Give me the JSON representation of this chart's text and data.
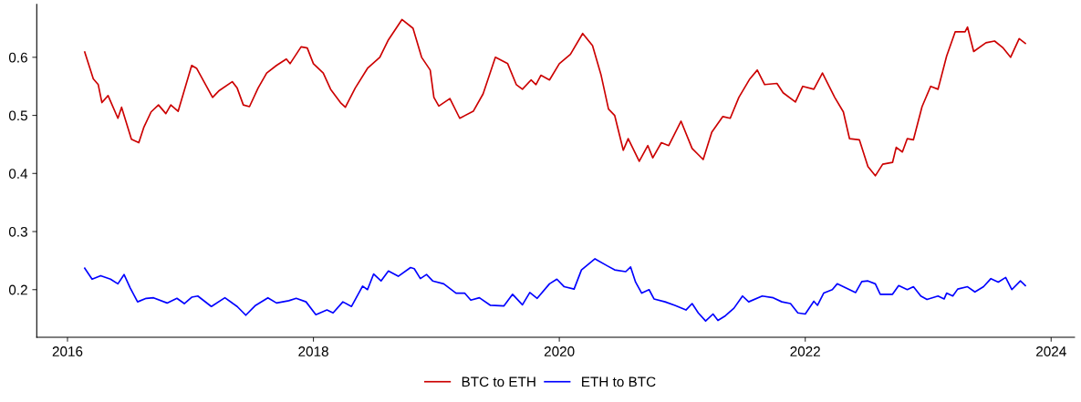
{
  "chart_data": {
    "type": "line",
    "xlim": [
      2015.75,
      2024.19
    ],
    "xticks": [
      2016,
      2018,
      2020,
      2022,
      2024
    ],
    "ylim": [
      0.118,
      0.691
    ],
    "yticks": [
      0.2,
      0.3,
      0.4,
      0.5,
      0.6
    ],
    "grid": false,
    "legend": "bottom",
    "line_style": "solid",
    "marker": "none",
    "series": [
      {
        "name": "BTC to ETH",
        "color": "#cc0000",
        "x": [
          2016.14,
          2016.21,
          2016.25,
          2016.28,
          2016.33,
          2016.41,
          2016.44,
          2016.52,
          2016.58,
          2016.62,
          2016.68,
          2016.74,
          2016.8,
          2016.84,
          2016.9,
          2017.01,
          2017.05,
          2017.11,
          2017.18,
          2017.23,
          2017.34,
          2017.38,
          2017.43,
          2017.48,
          2017.55,
          2017.62,
          2017.7,
          2017.78,
          2017.81,
          2017.9,
          2017.95,
          2018.0,
          2018.08,
          2018.14,
          2018.22,
          2018.26,
          2018.34,
          2018.44,
          2018.54,
          2018.61,
          2018.72,
          2018.81,
          2018.88,
          2018.95,
          2018.98,
          2019.02,
          2019.11,
          2019.19,
          2019.3,
          2019.38,
          2019.48,
          2019.58,
          2019.65,
          2019.7,
          2019.77,
          2019.81,
          2019.85,
          2019.92,
          2020.0,
          2020.09,
          2020.19,
          2020.27,
          2020.34,
          2020.4,
          2020.45,
          2020.52,
          2020.56,
          2020.65,
          2020.72,
          2020.76,
          2020.83,
          2020.89,
          2020.99,
          2021.08,
          2021.17,
          2021.24,
          2021.33,
          2021.39,
          2021.46,
          2021.55,
          2021.61,
          2021.67,
          2021.77,
          2021.82,
          2021.92,
          2021.98,
          2022.07,
          2022.14,
          2022.24,
          2022.31,
          2022.36,
          2022.44,
          2022.51,
          2022.57,
          2022.63,
          2022.71,
          2022.74,
          2022.79,
          2022.83,
          2022.88,
          2022.95,
          2023.02,
          2023.08,
          2023.15,
          2023.22,
          2023.3,
          2023.32,
          2023.37,
          2023.47,
          2023.54,
          2023.61,
          2023.67,
          2023.74,
          2023.79
        ],
        "values": [
          0.609,
          0.563,
          0.553,
          0.522,
          0.534,
          0.495,
          0.514,
          0.459,
          0.453,
          0.479,
          0.506,
          0.518,
          0.503,
          0.518,
          0.507,
          0.586,
          0.581,
          0.558,
          0.531,
          0.542,
          0.558,
          0.547,
          0.518,
          0.515,
          0.547,
          0.573,
          0.586,
          0.597,
          0.589,
          0.618,
          0.616,
          0.589,
          0.573,
          0.545,
          0.522,
          0.514,
          0.547,
          0.581,
          0.6,
          0.63,
          0.665,
          0.65,
          0.6,
          0.578,
          0.531,
          0.516,
          0.529,
          0.495,
          0.507,
          0.537,
          0.6,
          0.589,
          0.553,
          0.545,
          0.561,
          0.553,
          0.569,
          0.561,
          0.589,
          0.605,
          0.641,
          0.62,
          0.569,
          0.511,
          0.5,
          0.44,
          0.46,
          0.421,
          0.448,
          0.427,
          0.453,
          0.448,
          0.49,
          0.443,
          0.424,
          0.471,
          0.498,
          0.495,
          0.531,
          0.563,
          0.578,
          0.553,
          0.555,
          0.539,
          0.523,
          0.55,
          0.545,
          0.573,
          0.531,
          0.506,
          0.46,
          0.458,
          0.412,
          0.396,
          0.416,
          0.419,
          0.445,
          0.437,
          0.46,
          0.458,
          0.515,
          0.55,
          0.545,
          0.602,
          0.644,
          0.644,
          0.652,
          0.61,
          0.625,
          0.628,
          0.616,
          0.6,
          0.632,
          0.624
        ]
      },
      {
        "name": "ETH to BTC",
        "color": "#0000ff",
        "x": [
          2016.14,
          2016.2,
          2016.27,
          2016.35,
          2016.41,
          2016.46,
          2016.51,
          2016.57,
          2016.64,
          2016.7,
          2016.81,
          2016.89,
          2016.95,
          2017.01,
          2017.06,
          2017.17,
          2017.28,
          2017.38,
          2017.45,
          2017.53,
          2017.63,
          2017.7,
          2017.8,
          2017.86,
          2017.94,
          2018.02,
          2018.11,
          2018.16,
          2018.24,
          2018.31,
          2018.4,
          2018.44,
          2018.49,
          2018.55,
          2018.61,
          2018.69,
          2018.79,
          2018.82,
          2018.87,
          2018.92,
          2018.97,
          2019.06,
          2019.16,
          2019.23,
          2019.28,
          2019.35,
          2019.44,
          2019.55,
          2019.62,
          2019.7,
          2019.76,
          2019.82,
          2019.92,
          2019.98,
          2020.04,
          2020.12,
          2020.18,
          2020.29,
          2020.39,
          2020.45,
          2020.54,
          2020.58,
          2020.62,
          2020.67,
          2020.73,
          2020.77,
          2020.86,
          2020.94,
          2021.03,
          2021.08,
          2021.13,
          2021.19,
          2021.25,
          2021.29,
          2021.35,
          2021.42,
          2021.49,
          2021.54,
          2021.65,
          2021.74,
          2021.81,
          2021.88,
          2021.94,
          2022.0,
          2022.07,
          2022.1,
          2022.15,
          2022.22,
          2022.26,
          2022.36,
          2022.41,
          2022.46,
          2022.51,
          2022.57,
          2022.61,
          2022.71,
          2022.76,
          2022.83,
          2022.88,
          2022.94,
          2022.99,
          2023.08,
          2023.13,
          2023.15,
          2023.2,
          2023.24,
          2023.32,
          2023.38,
          2023.45,
          2023.51,
          2023.57,
          2023.63,
          2023.68,
          2023.75,
          2023.79
        ],
        "values": [
          0.237,
          0.218,
          0.224,
          0.218,
          0.21,
          0.226,
          0.203,
          0.179,
          0.185,
          0.186,
          0.177,
          0.185,
          0.176,
          0.187,
          0.189,
          0.171,
          0.186,
          0.171,
          0.156,
          0.173,
          0.186,
          0.177,
          0.181,
          0.185,
          0.179,
          0.157,
          0.165,
          0.16,
          0.179,
          0.171,
          0.206,
          0.2,
          0.227,
          0.215,
          0.232,
          0.223,
          0.238,
          0.236,
          0.219,
          0.226,
          0.215,
          0.21,
          0.194,
          0.194,
          0.182,
          0.186,
          0.173,
          0.172,
          0.192,
          0.174,
          0.195,
          0.185,
          0.21,
          0.218,
          0.205,
          0.201,
          0.234,
          0.253,
          0.241,
          0.234,
          0.231,
          0.239,
          0.213,
          0.194,
          0.2,
          0.184,
          0.179,
          0.173,
          0.165,
          0.176,
          0.16,
          0.146,
          0.158,
          0.147,
          0.155,
          0.168,
          0.189,
          0.179,
          0.189,
          0.186,
          0.179,
          0.176,
          0.16,
          0.158,
          0.18,
          0.173,
          0.194,
          0.2,
          0.21,
          0.2,
          0.195,
          0.214,
          0.215,
          0.21,
          0.192,
          0.192,
          0.207,
          0.2,
          0.205,
          0.189,
          0.183,
          0.189,
          0.184,
          0.194,
          0.189,
          0.201,
          0.205,
          0.196,
          0.205,
          0.219,
          0.213,
          0.221,
          0.2,
          0.215,
          0.207
        ]
      }
    ]
  }
}
